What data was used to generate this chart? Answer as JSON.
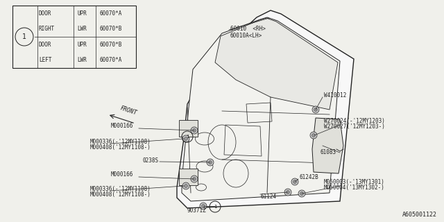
{
  "bg_color": "#f0f0eb",
  "line_color": "#222222",
  "fig_width": 6.4,
  "fig_height": 3.2,
  "dpi": 100,
  "footnote": "A605001122",
  "table": {
    "rows": [
      [
        "DOOR",
        "UPR",
        "60070*A"
      ],
      [
        "RIGHT",
        "LWR",
        "60070*B"
      ],
      [
        "DOOR",
        "UPR",
        "60070*B"
      ],
      [
        "LEFT",
        "LWR",
        "60070*A"
      ]
    ]
  }
}
